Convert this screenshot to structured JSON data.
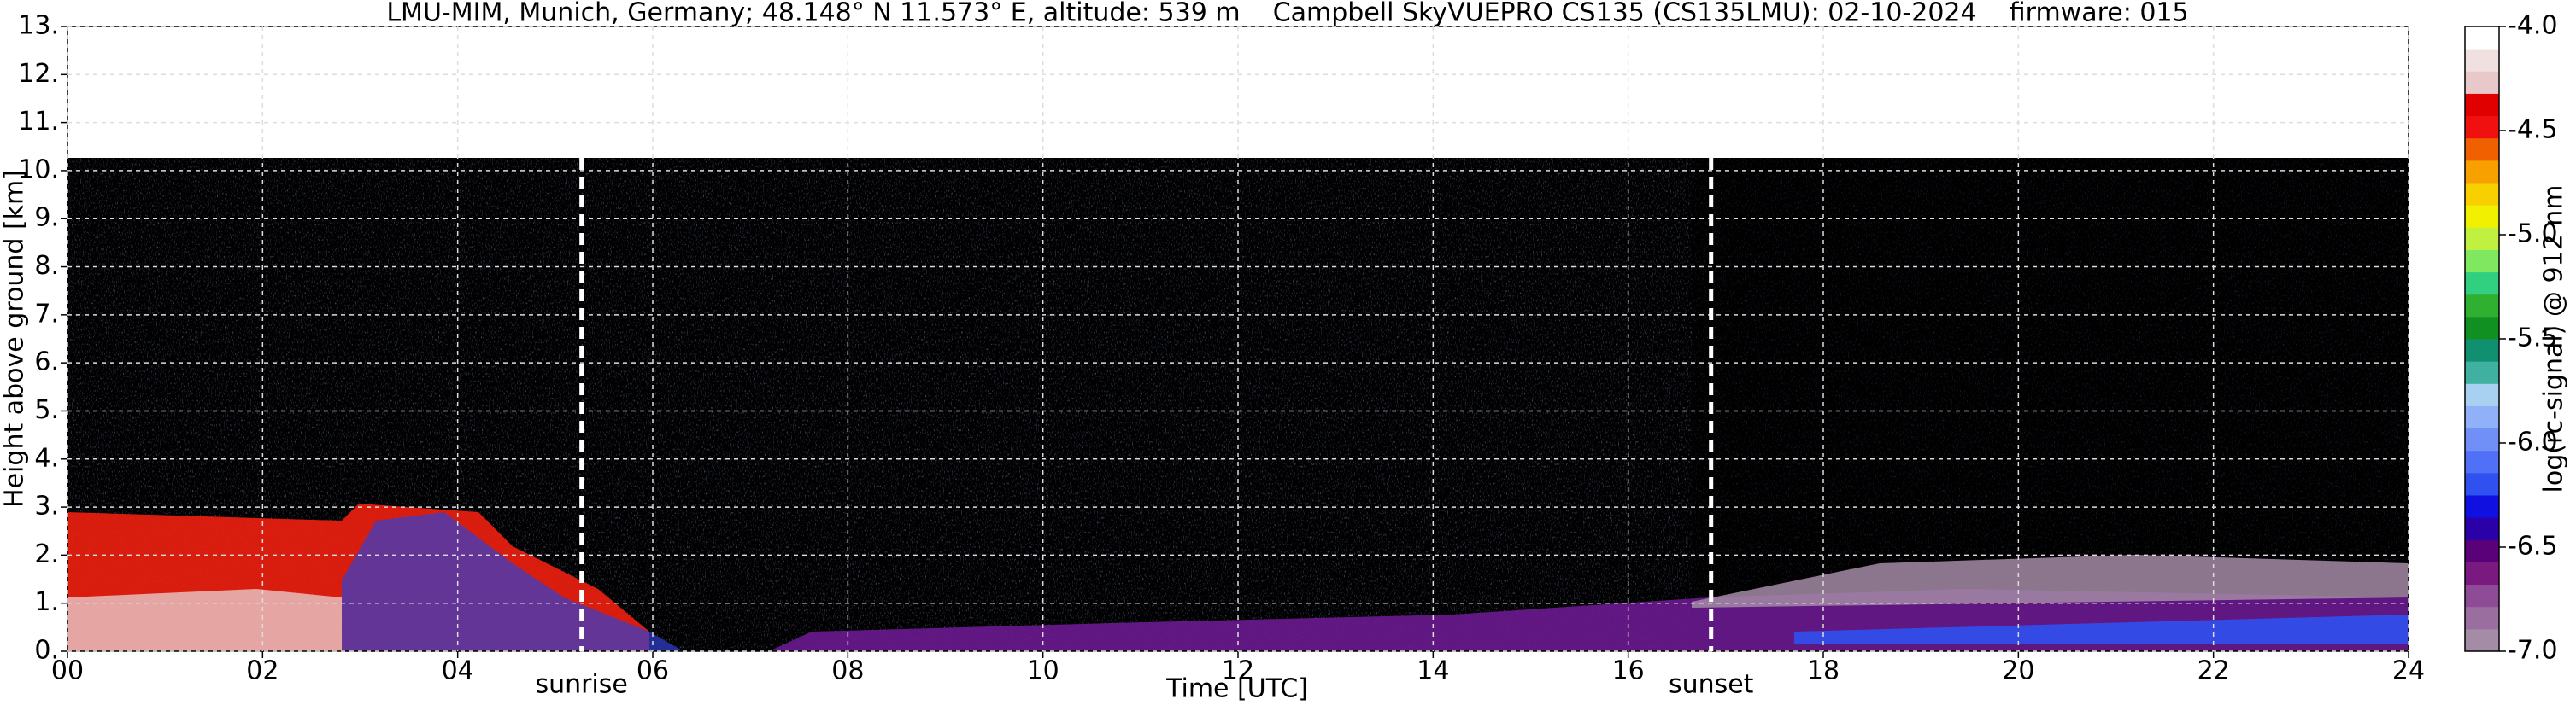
{
  "chart_data": {
    "type": "heatmap",
    "title": "LMU-MIM, Munich, Germany; 48.148° N 11.573° E, altitude: 539 m    Campbell SkyVUEPRO CS135 (CS135LMU): 02-10-2024    firmware: 015",
    "xlabel": "Time [UTC]",
    "ylabel": "Height above ground [km]",
    "xlim": [
      0,
      24
    ],
    "xticks": [
      {
        "value": 0,
        "label": "00"
      },
      {
        "value": 2,
        "label": "02"
      },
      {
        "value": 4,
        "label": "04"
      },
      {
        "value": 6,
        "label": "06"
      },
      {
        "value": 8,
        "label": "08"
      },
      10,
      12,
      14,
      16,
      18,
      20,
      22,
      24
    ],
    "ylim": [
      0,
      13
    ],
    "yticks": [
      {
        "value": 0,
        "label": "0."
      },
      {
        "value": 1,
        "label": "1."
      },
      {
        "value": 2,
        "label": "2."
      },
      {
        "value": 3,
        "label": "3."
      },
      {
        "value": 4,
        "label": "4."
      },
      {
        "value": 5,
        "label": "5."
      },
      {
        "value": 6,
        "label": "6."
      },
      {
        "value": 7,
        "label": "7."
      },
      {
        "value": 8,
        "label": "8."
      },
      {
        "value": 9,
        "label": "9."
      },
      {
        "value": 10,
        "label": "10."
      },
      {
        "value": 11,
        "label": "11."
      },
      {
        "value": 12,
        "label": "12."
      },
      {
        "value": 13,
        "label": "13."
      }
    ],
    "grid": true,
    "colorbar": {
      "label": "log(rc-signal) @ 912 nm",
      "lim": [
        -7,
        -4
      ],
      "ticks": [
        {
          "value": -7,
          "label": "-7.0"
        },
        -6.5,
        {
          "value": -6,
          "label": "-6.0"
        },
        -5.5,
        {
          "value": -5,
          "label": "-5.0"
        },
        -4.5,
        {
          "value": -4,
          "label": "-4.0"
        }
      ],
      "colors": [
        "#a48ba6",
        "#9a6fa0",
        "#8f4c96",
        "#7a1a80",
        "#5a0078",
        "#2a00a8",
        "#1010e0",
        "#3050f0",
        "#5070f8",
        "#7090f8",
        "#90b0f8",
        "#a8d0f0",
        "#40b0a0",
        "#109070",
        "#109020",
        "#30b030",
        "#30d080",
        "#80e860",
        "#c0f040",
        "#f0f000",
        "#f8d000",
        "#f8a000",
        "#f06000",
        "#f01010",
        "#e00000",
        "#e8c8c8",
        "#f0e0e0",
        "#ffffff"
      ]
    },
    "annotations": [
      {
        "text": "sunrise",
        "x": 5.27
      },
      {
        "text": "sunset",
        "x": 16.85
      }
    ]
  }
}
